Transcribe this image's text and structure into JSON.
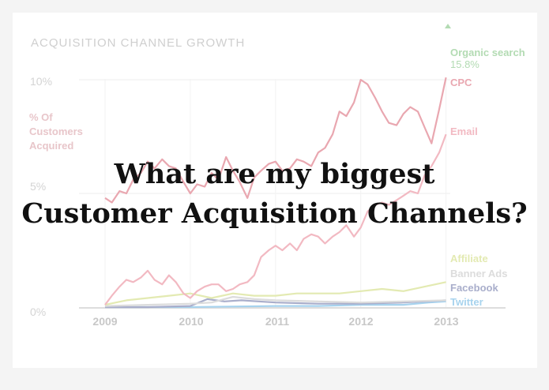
{
  "chart_data": {
    "type": "line",
    "title": "ACQUISITION CHANNEL GROWTH",
    "ylabel": "% Of\nCustomers\nAcquired",
    "y_ticks": [
      "10%",
      "5%",
      "0%"
    ],
    "x_ticks": [
      "2009",
      "2010",
      "2011",
      "2012",
      "2013"
    ],
    "xlim": [
      2009,
      2013.05
    ],
    "ylim": [
      0,
      10
    ],
    "grid": true,
    "legend_placement": "right",
    "series": [
      {
        "name": "Organic search",
        "end_label": "15.8%",
        "color": "#b3dbb3",
        "x": [],
        "y": []
      },
      {
        "name": "CPC",
        "color": "#e9a7b0",
        "x": [
          2009.0,
          2009.08,
          2009.17,
          2009.25,
          2009.33,
          2009.42,
          2009.5,
          2009.58,
          2009.67,
          2009.75,
          2009.83,
          2009.92,
          2010.0,
          2010.08,
          2010.17,
          2010.25,
          2010.33,
          2010.42,
          2010.5,
          2010.58,
          2010.67,
          2010.75,
          2010.83,
          2010.92,
          2011.0,
          2011.08,
          2011.17,
          2011.25,
          2011.33,
          2011.42,
          2011.5,
          2011.58,
          2011.67,
          2011.75,
          2011.83,
          2011.92,
          2012.0,
          2012.08,
          2012.17,
          2012.25,
          2012.33,
          2012.42,
          2012.5,
          2012.58,
          2012.67,
          2012.75,
          2012.83,
          2012.92,
          2013.0
        ],
        "y": [
          4.8,
          4.6,
          5.1,
          5.0,
          5.6,
          5.9,
          6.4,
          6.1,
          6.5,
          6.2,
          6.1,
          5.5,
          5.0,
          5.4,
          5.3,
          5.9,
          5.6,
          6.6,
          6.0,
          5.5,
          4.8,
          5.7,
          6.0,
          6.3,
          6.4,
          6.0,
          6.1,
          6.5,
          6.4,
          6.2,
          6.8,
          7.0,
          7.6,
          8.6,
          8.4,
          9.0,
          10.0,
          9.8,
          9.2,
          8.6,
          8.1,
          8.0,
          8.5,
          8.8,
          8.6,
          7.9,
          7.2,
          8.7,
          10.1
        ]
      },
      {
        "name": "Email",
        "color": "#f2b9c2",
        "x": [
          2009.0,
          2009.08,
          2009.17,
          2009.25,
          2009.33,
          2009.42,
          2009.5,
          2009.58,
          2009.67,
          2009.75,
          2009.83,
          2009.92,
          2010.0,
          2010.08,
          2010.17,
          2010.25,
          2010.33,
          2010.42,
          2010.5,
          2010.58,
          2010.67,
          2010.75,
          2010.83,
          2010.92,
          2011.0,
          2011.08,
          2011.17,
          2011.25,
          2011.33,
          2011.42,
          2011.5,
          2011.58,
          2011.67,
          2011.75,
          2011.83,
          2011.92,
          2012.0,
          2012.08,
          2012.17,
          2012.25,
          2012.33,
          2012.42,
          2012.5,
          2012.58,
          2012.67,
          2012.75,
          2012.83,
          2012.92,
          2013.0
        ],
        "y": [
          0.1,
          0.5,
          0.9,
          1.2,
          1.1,
          1.3,
          1.6,
          1.2,
          1.0,
          1.4,
          1.1,
          0.6,
          0.4,
          0.7,
          0.9,
          1.0,
          1.0,
          0.7,
          0.8,
          1.0,
          1.1,
          1.4,
          2.2,
          2.5,
          2.7,
          2.5,
          2.8,
          2.5,
          3.0,
          3.2,
          3.1,
          2.8,
          3.1,
          3.3,
          3.6,
          3.1,
          3.5,
          4.2,
          4.5,
          4.6,
          4.5,
          4.7,
          4.9,
          5.1,
          5.0,
          5.8,
          6.2,
          6.8,
          7.6
        ]
      },
      {
        "name": "Affiliate",
        "color": "#e3eab2",
        "x": [
          2009.0,
          2009.25,
          2009.5,
          2009.75,
          2010.0,
          2010.25,
          2010.5,
          2010.75,
          2011.0,
          2011.25,
          2011.5,
          2011.75,
          2012.0,
          2012.25,
          2012.5,
          2012.75,
          2013.0
        ],
        "y": [
          0.1,
          0.3,
          0.4,
          0.5,
          0.6,
          0.4,
          0.6,
          0.5,
          0.5,
          0.6,
          0.6,
          0.6,
          0.7,
          0.8,
          0.7,
          0.9,
          1.1
        ]
      },
      {
        "name": "Banner Ads",
        "color": "#dcdcdc",
        "x": [
          2009.0,
          2009.5,
          2010.0,
          2010.25,
          2010.5,
          2010.75,
          2011.0,
          2011.5,
          2012.0,
          2012.5,
          2013.0
        ],
        "y": [
          0.05,
          0.1,
          0.15,
          0.2,
          0.45,
          0.35,
          0.3,
          0.25,
          0.2,
          0.25,
          0.3
        ]
      },
      {
        "name": "Facebook",
        "color": "#a9aecb",
        "x": [
          2009.0,
          2009.5,
          2010.0,
          2010.2,
          2010.4,
          2010.6,
          2010.8,
          2011.0,
          2011.5,
          2012.0,
          2012.5,
          2013.0
        ],
        "y": [
          0.0,
          0.0,
          0.05,
          0.35,
          0.25,
          0.3,
          0.25,
          0.2,
          0.15,
          0.15,
          0.2,
          0.3
        ]
      },
      {
        "name": "Twitter",
        "color": "#a7d3ee",
        "x": [
          2009.0,
          2010.0,
          2011.0,
          2011.5,
          2012.0,
          2012.5,
          2012.8,
          2013.0
        ],
        "y": [
          0.0,
          0.0,
          0.05,
          0.05,
          0.1,
          0.1,
          0.2,
          0.25
        ]
      }
    ]
  },
  "overlay": {
    "line1": "What are my biggest",
    "line2": "Customer Acquisition Channels?"
  }
}
